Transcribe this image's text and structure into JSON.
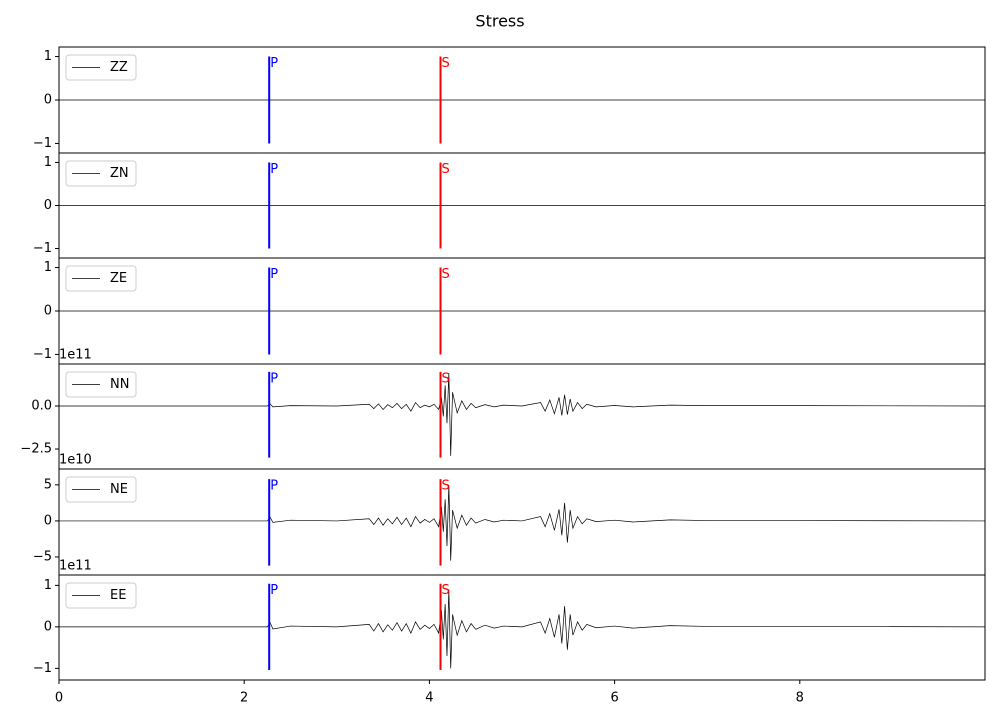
{
  "title": "Stress",
  "chart_data": [
    {
      "type": "line",
      "xlim": [
        0,
        10
      ],
      "ylim": [
        -1.22,
        1.22
      ],
      "yticks": [
        1,
        0,
        {
          "value": -1,
          "label": "−1"
        }
      ],
      "x": [
        0,
        10
      ],
      "series": [
        {
          "name": "ZZ",
          "color": "#000000",
          "values": [
            0,
            0
          ]
        }
      ],
      "markers": [
        {
          "label": "P",
          "x": 2.27,
          "ymin": -1,
          "ymax": 1,
          "color": "#0000ff"
        },
        {
          "label": "S",
          "x": 4.12,
          "ymin": -1,
          "ymax": 1,
          "color": "#ff0000"
        }
      ]
    },
    {
      "type": "line",
      "xlim": [
        0,
        10
      ],
      "ylim": [
        -1.22,
        1.22
      ],
      "yticks": [
        1,
        0,
        {
          "value": -1,
          "label": "−1"
        }
      ],
      "x": [
        0,
        10
      ],
      "series": [
        {
          "name": "ZN",
          "color": "#000000",
          "values": [
            0,
            0
          ]
        }
      ],
      "markers": [
        {
          "label": "P",
          "x": 2.27,
          "ymin": -1,
          "ymax": 1,
          "color": "#0000ff"
        },
        {
          "label": "S",
          "x": 4.12,
          "ymin": -1,
          "ymax": 1,
          "color": "#ff0000"
        }
      ]
    },
    {
      "type": "line",
      "xlim": [
        0,
        10
      ],
      "ylim": [
        -1.22,
        1.22
      ],
      "yticks": [
        1,
        0,
        {
          "value": -1,
          "label": "−1"
        }
      ],
      "x": [
        0,
        10
      ],
      "series": [
        {
          "name": "ZE",
          "color": "#000000",
          "values": [
            0,
            0
          ]
        }
      ],
      "markers": [
        {
          "label": "P",
          "x": 2.27,
          "ymin": -1,
          "ymax": 1,
          "color": "#0000ff"
        },
        {
          "label": "S",
          "x": 4.12,
          "ymin": -1,
          "ymax": 1,
          "color": "#ff0000"
        }
      ]
    },
    {
      "type": "line",
      "xlim": [
        0,
        10
      ],
      "ylim": [
        -3.66,
        2.44
      ],
      "yticks": [
        {
          "value": 0,
          "label": "0.0"
        },
        {
          "value": -2.5,
          "label": "−2.5"
        }
      ],
      "offset_text": "1e11",
      "x": [
        0,
        1,
        2,
        2.25,
        2.28,
        2.31,
        2.5,
        3.0,
        3.35,
        3.4,
        3.45,
        3.5,
        3.55,
        3.6,
        3.65,
        3.7,
        3.75,
        3.8,
        3.85,
        3.9,
        3.95,
        4.0,
        4.05,
        4.1,
        4.13,
        4.15,
        4.17,
        4.19,
        4.21,
        4.23,
        4.25,
        4.3,
        4.35,
        4.4,
        4.45,
        4.5,
        4.6,
        4.7,
        4.8,
        5.0,
        5.2,
        5.25,
        5.3,
        5.35,
        5.4,
        5.43,
        5.46,
        5.49,
        5.52,
        5.55,
        5.6,
        5.65,
        5.7,
        5.8,
        6.0,
        6.2,
        6.6,
        7.0,
        8.0,
        10.0
      ],
      "series": [
        {
          "name": "NN",
          "color": "#000000",
          "values": [
            0,
            0,
            0,
            0,
            0.12,
            -0.05,
            0.02,
            0,
            0.1,
            -0.15,
            0.12,
            -0.2,
            0.08,
            -0.1,
            0.15,
            -0.15,
            0.1,
            -0.3,
            0.2,
            -0.1,
            0.05,
            -0.05,
            0.1,
            -0.2,
            0.5,
            -0.6,
            1.2,
            -1.0,
            1.9,
            -2.9,
            0.8,
            -0.4,
            0.3,
            -0.2,
            0.15,
            -0.1,
            0.08,
            -0.05,
            0.05,
            0,
            0.2,
            -0.3,
            0.35,
            -0.45,
            0.5,
            -0.55,
            0.65,
            -0.5,
            0.4,
            -0.3,
            0.2,
            -0.15,
            0.1,
            -0.05,
            0.03,
            -0.05,
            0.05,
            0.02,
            0.02,
            0
          ]
        }
      ],
      "markers": [
        {
          "label": "P",
          "x": 2.27,
          "ymin": -3.0,
          "ymax": 1.98,
          "color": "#0000ff"
        },
        {
          "label": "S",
          "x": 4.12,
          "ymin": -3.0,
          "ymax": 1.98,
          "color": "#ff0000"
        }
      ]
    },
    {
      "type": "line",
      "xlim": [
        0,
        10
      ],
      "ylim": [
        -7.5,
        7.2
      ],
      "yticks": [
        5,
        0,
        {
          "value": -5,
          "label": "−5"
        }
      ],
      "offset_text": "1e10",
      "x": [
        0,
        1,
        2,
        2.25,
        2.28,
        2.31,
        2.5,
        3.0,
        3.35,
        3.4,
        3.45,
        3.5,
        3.55,
        3.6,
        3.65,
        3.7,
        3.75,
        3.8,
        3.85,
        3.9,
        3.95,
        4.0,
        4.05,
        4.1,
        4.13,
        4.15,
        4.17,
        4.19,
        4.21,
        4.23,
        4.25,
        4.3,
        4.35,
        4.4,
        4.45,
        4.5,
        4.6,
        4.7,
        4.8,
        5.0,
        5.2,
        5.25,
        5.3,
        5.35,
        5.4,
        5.43,
        5.46,
        5.49,
        5.52,
        5.55,
        5.6,
        5.65,
        5.7,
        5.8,
        6.0,
        6.2,
        6.6,
        7.0,
        8.0,
        10.0
      ],
      "series": [
        {
          "name": "NE",
          "color": "#000000",
          "values": [
            0,
            0,
            0,
            0,
            0.5,
            -0.2,
            0.1,
            0,
            0.3,
            -0.5,
            0.4,
            -0.6,
            0.3,
            -0.4,
            0.5,
            -0.5,
            0.4,
            -0.8,
            0.6,
            -0.3,
            0.2,
            -0.2,
            0.3,
            -0.8,
            2.0,
            -1.5,
            3.0,
            -3.5,
            5.0,
            -5.5,
            1.5,
            -1.0,
            0.8,
            -0.6,
            0.4,
            -0.3,
            0.2,
            -0.15,
            0.1,
            0,
            0.6,
            -0.8,
            1.0,
            -1.3,
            1.6,
            -2.0,
            2.5,
            -3.0,
            1.5,
            -1.0,
            0.6,
            -0.4,
            0.3,
            -0.1,
            0.1,
            -0.15,
            0.15,
            0.05,
            0.05,
            0
          ]
        }
      ],
      "markers": [
        {
          "label": "P",
          "x": 2.27,
          "ymin": -6.2,
          "ymax": 5.8,
          "color": "#0000ff"
        },
        {
          "label": "S",
          "x": 4.12,
          "ymin": -6.2,
          "ymax": 5.8,
          "color": "#ff0000"
        }
      ]
    },
    {
      "type": "line",
      "xlim": [
        0,
        10
      ],
      "ylim": [
        -1.28,
        1.25
      ],
      "yticks": [
        1,
        0,
        {
          "value": -1,
          "label": "−1"
        }
      ],
      "offset_text": "1e11",
      "xticks": [
        0,
        2,
        4,
        6,
        8
      ],
      "x": [
        0,
        1,
        2,
        2.25,
        2.28,
        2.31,
        2.5,
        3.0,
        3.35,
        3.4,
        3.45,
        3.5,
        3.55,
        3.6,
        3.65,
        3.7,
        3.75,
        3.8,
        3.85,
        3.9,
        3.95,
        4.0,
        4.05,
        4.1,
        4.13,
        4.15,
        4.17,
        4.19,
        4.21,
        4.23,
        4.25,
        4.3,
        4.35,
        4.4,
        4.45,
        4.5,
        4.6,
        4.7,
        4.8,
        5.0,
        5.2,
        5.25,
        5.3,
        5.35,
        5.4,
        5.43,
        5.46,
        5.49,
        5.52,
        5.55,
        5.6,
        5.65,
        5.7,
        5.8,
        6.0,
        6.2,
        6.6,
        7.0,
        8.0,
        10.0
      ],
      "series": [
        {
          "name": "EE",
          "color": "#000000",
          "values": [
            0,
            0,
            0,
            0,
            0.1,
            -0.05,
            0.02,
            0,
            0.06,
            -0.1,
            0.08,
            -0.12,
            0.05,
            -0.08,
            0.1,
            -0.1,
            0.08,
            -0.15,
            0.12,
            -0.06,
            0.04,
            -0.04,
            0.06,
            -0.15,
            0.4,
            -0.3,
            0.55,
            -0.7,
            0.9,
            -1.0,
            0.3,
            -0.2,
            0.15,
            -0.12,
            0.08,
            -0.06,
            0.04,
            -0.03,
            0.02,
            0,
            0.12,
            -0.15,
            0.2,
            -0.25,
            0.3,
            -0.4,
            0.5,
            -0.55,
            0.3,
            -0.2,
            0.12,
            -0.08,
            0.06,
            -0.02,
            0.02,
            -0.03,
            0.03,
            0.01,
            0.01,
            0
          ]
        }
      ],
      "markers": [
        {
          "label": "P",
          "x": 2.27,
          "ymin": -1.04,
          "ymax": 1.04,
          "color": "#0000ff"
        },
        {
          "label": "S",
          "x": 4.12,
          "ymin": -1.04,
          "ymax": 1.04,
          "color": "#ff0000"
        }
      ]
    }
  ]
}
